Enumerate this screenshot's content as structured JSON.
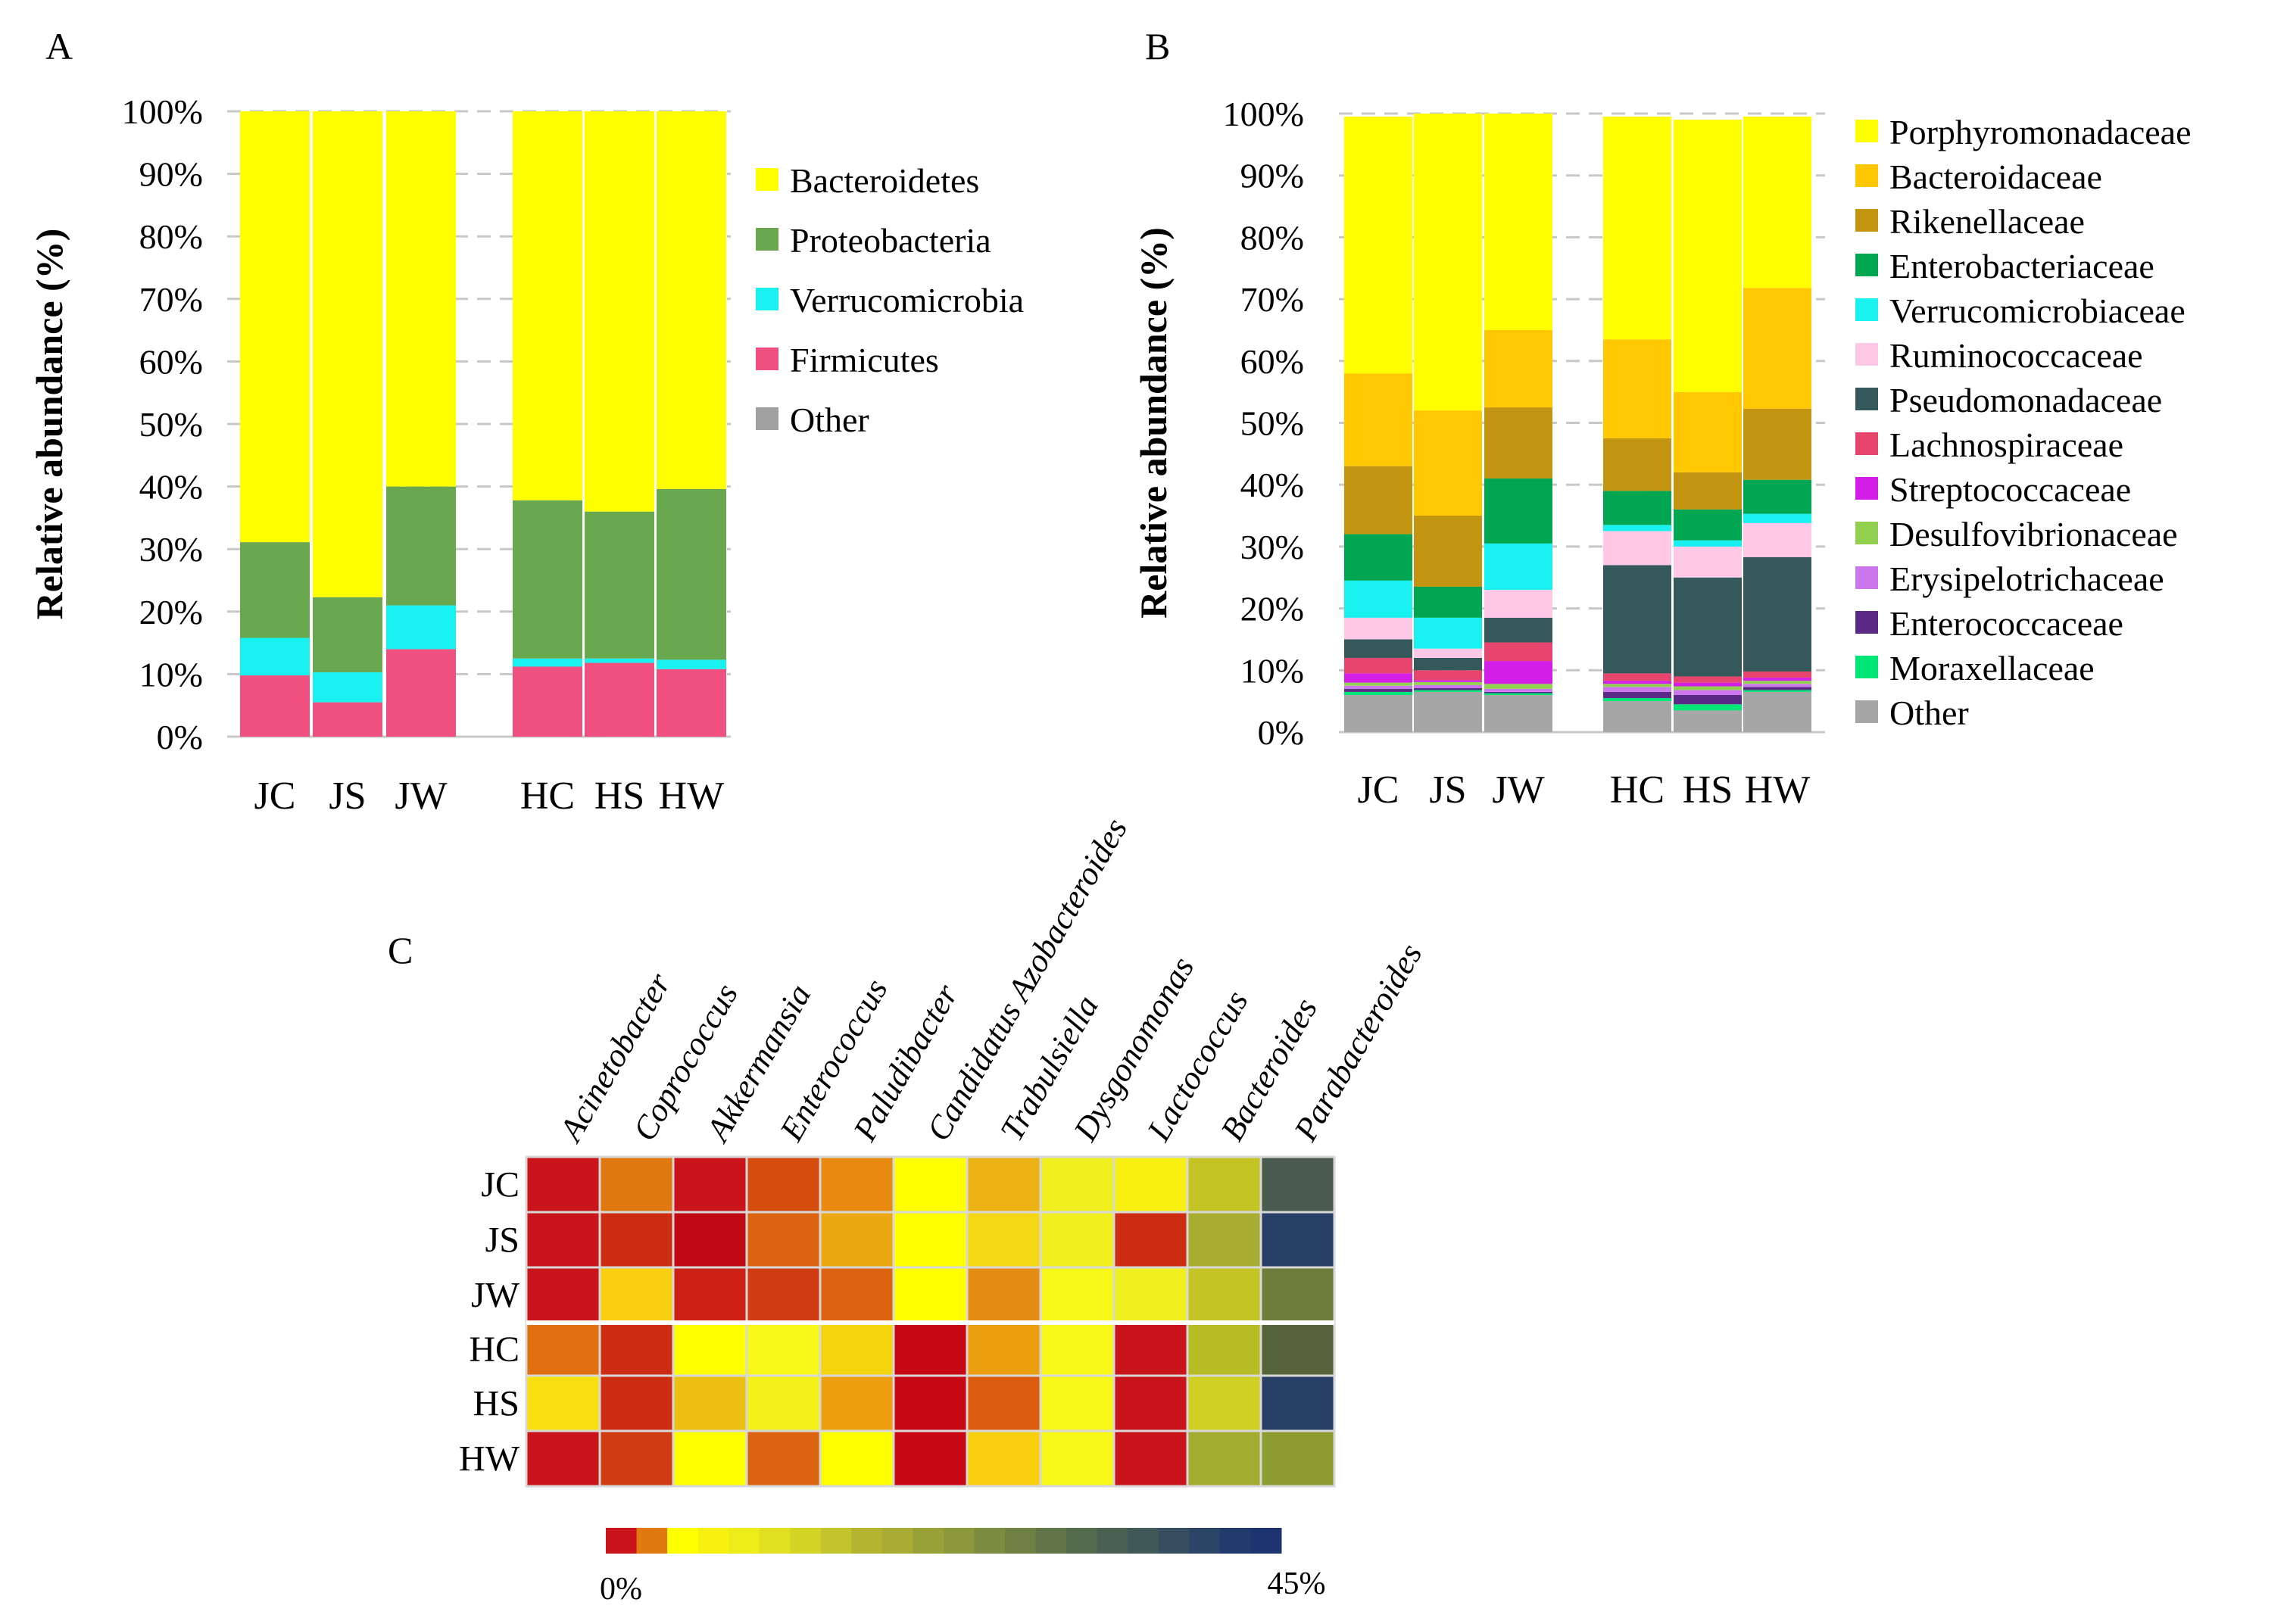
{
  "chart_data": [
    {
      "panel": "A",
      "type": "stacked-bar",
      "ylabel": "Relative abundance (%)",
      "ylim": [
        0,
        100
      ],
      "yticks": [
        "0%",
        "10%",
        "20%",
        "30%",
        "40%",
        "50%",
        "60%",
        "70%",
        "80%",
        "90%",
        "100%"
      ],
      "categories": [
        "JC",
        "JS",
        "JW",
        "HC",
        "HS",
        "HW"
      ],
      "legend_position": "right",
      "series": [
        {
          "name": "Other",
          "color": "#a0a0a0",
          "values": [
            0,
            0,
            0,
            0,
            0,
            0
          ]
        },
        {
          "name": "Firmicutes",
          "color": "#f0507f",
          "values": [
            9.8,
            5.5,
            14.0,
            11.2,
            11.8,
            10.8
          ]
        },
        {
          "name": "Verrucomicrobia",
          "color": "#19f0f0",
          "values": [
            6.0,
            4.8,
            7.0,
            1.3,
            0.7,
            1.5
          ]
        },
        {
          "name": "Proteobacteria",
          "color": "#6aa84f",
          "values": [
            15.3,
            12.0,
            19.0,
            25.3,
            23.5,
            27.3
          ]
        },
        {
          "name": "Bacteroidetes",
          "color": "#ffff00",
          "values": [
            68.9,
            77.7,
            60.0,
            62.2,
            64.0,
            60.4
          ]
        }
      ],
      "legend_order": [
        "Bacteroidetes",
        "Proteobacteria",
        "Verrucomicrobia",
        "Firmicutes",
        "Other"
      ]
    },
    {
      "panel": "B",
      "type": "stacked-bar",
      "ylabel": "Relative abundance (%)",
      "ylim": [
        0,
        100
      ],
      "yticks": [
        "0%",
        "10%",
        "20%",
        "30%",
        "40%",
        "50%",
        "60%",
        "70%",
        "80%",
        "90%",
        "100%"
      ],
      "categories": [
        "JC",
        "JS",
        "JW",
        "HC",
        "HS",
        "HW"
      ],
      "legend_position": "right",
      "series": [
        {
          "name": "Other",
          "color": "#a6a6a6",
          "values": [
            6.0,
            6.5,
            6.0,
            5.0,
            3.5,
            6.5
          ]
        },
        {
          "name": "Moraxellaceae",
          "color": "#00e676",
          "values": [
            0.5,
            0.3,
            0.3,
            0.5,
            1.0,
            0.3
          ]
        },
        {
          "name": "Enterococcaceae",
          "color": "#5b2a86",
          "values": [
            0.5,
            0.3,
            0.2,
            1.0,
            1.5,
            0.5
          ]
        },
        {
          "name": "Erysipelotrichaceae",
          "color": "#cc77ee",
          "values": [
            0.5,
            0.5,
            0.5,
            0.8,
            0.8,
            0.5
          ]
        },
        {
          "name": "Desulfovibrionaceae",
          "color": "#92d050",
          "values": [
            0.5,
            0.5,
            0.8,
            0.5,
            0.6,
            0.5
          ]
        },
        {
          "name": "Streptococcaceae",
          "color": "#d21ee6",
          "values": [
            1.5,
            0.3,
            3.7,
            0.5,
            0.6,
            0.5
          ]
        },
        {
          "name": "Lachnospiraceae",
          "color": "#e8456e",
          "values": [
            2.5,
            1.6,
            3.0,
            1.2,
            1.0,
            1.0
          ]
        },
        {
          "name": "Pseudomonadaceae",
          "color": "#35595a",
          "values": [
            3.0,
            2.0,
            4.0,
            17.5,
            16.0,
            18.5
          ]
        },
        {
          "name": "Ruminococcaceae",
          "color": "#ffc8e6",
          "values": [
            3.5,
            1.5,
            4.5,
            5.5,
            5.0,
            5.5
          ]
        },
        {
          "name": "Verrucomicrobiaceae",
          "color": "#19f0f0",
          "values": [
            6.0,
            5.0,
            7.5,
            1.0,
            1.0,
            1.5
          ]
        },
        {
          "name": "Enterobacteriaceae",
          "color": "#00a651",
          "values": [
            7.5,
            5.0,
            10.5,
            5.5,
            5.0,
            5.5
          ]
        },
        {
          "name": "Rikenellaceae",
          "color": "#c49510",
          "values": [
            11.0,
            11.5,
            11.5,
            8.5,
            6.0,
            11.5
          ]
        },
        {
          "name": "Bacteroidaceae",
          "color": "#ffc800",
          "values": [
            15.0,
            17.0,
            12.5,
            16.0,
            13.0,
            19.5
          ]
        },
        {
          "name": "Porphyromonadaceae",
          "color": "#ffff00",
          "values": [
            41.5,
            48.0,
            35.0,
            36.0,
            44.0,
            27.7
          ]
        }
      ],
      "legend_order": [
        "Porphyromonadaceae",
        "Bacteroidaceae",
        "Rikenellaceae",
        "Enterobacteriaceae",
        "Verrucomicrobiaceae",
        "Ruminococcaceae",
        "Pseudomonadaceae",
        "Lachnospiraceae",
        "Streptococcaceae",
        "Desulfovibrionaceae",
        "Erysipelotrichaceae",
        "Enterococcaceae",
        "Moraxellaceae",
        "Other"
      ]
    },
    {
      "panel": "C",
      "type": "heatmap",
      "columns": [
        "Acinetobacter",
        "Coprococcus",
        "Akkermansia",
        "Enterococcus",
        "Paludibacter",
        "Candidatus Azobacteroides",
        "Trabulsiella",
        "Dysgonomonas",
        "Lactococcus",
        "Bacteroides",
        "Parabacteroides"
      ],
      "rows": [
        "JC",
        "JS",
        "JW",
        "HC",
        "HS",
        "HW"
      ],
      "colors": [
        [
          "#c8141a",
          "#e07a10",
          "#c8141a",
          "#d44c0e",
          "#e88a10",
          "#ffff00",
          "#ecb214",
          "#f0f020",
          "#f8f010",
          "#c4c424",
          "#4a5a50"
        ],
        [
          "#c8141a",
          "#cc2c12",
          "#c00814",
          "#dc6410",
          "#eca810",
          "#ffff00",
          "#f4d814",
          "#f0f020",
          "#cc2c12",
          "#a8ac30",
          "#263e64"
        ],
        [
          "#c8141a",
          "#f8d010",
          "#cc2014",
          "#d03c12",
          "#dc6410",
          "#ffff00",
          "#e48c14",
          "#f8f818",
          "#f0f020",
          "#c4c424",
          "#6e7c3c"
        ],
        [
          "#e07010",
          "#cc2c12",
          "#ffff00",
          "#f8f818",
          "#f4d40c",
          "#c80814",
          "#eca010",
          "#f8f818",
          "#c8141a",
          "#b8bc24",
          "#56643c"
        ],
        [
          "#f8e010",
          "#cc2c12",
          "#ecc010",
          "#f4f018",
          "#eca010",
          "#c80814",
          "#dc5c10",
          "#f8f818",
          "#c8141a",
          "#d0d024",
          "#263e64"
        ],
        [
          "#c8141a",
          "#d03c12",
          "#ffff00",
          "#dc6410",
          "#ffff00",
          "#c80814",
          "#f8d010",
          "#f8f818",
          "#c8141a",
          "#a4ac30",
          "#8c9c30"
        ]
      ],
      "colorbar": {
        "min_label": "0%",
        "max_label": "45%",
        "range": [
          0,
          45
        ],
        "colors": [
          "#c8141a",
          "#e07a10",
          "#ffff00",
          "#f8f010",
          "#ecec18",
          "#e0e020",
          "#d4d424",
          "#c4c42c",
          "#b4b430",
          "#a8ac34",
          "#98a038",
          "#8c983c",
          "#7c8c40",
          "#6e8044",
          "#607448",
          "#546a4c",
          "#4a6050",
          "#405858",
          "#364e60",
          "#2c4466",
          "#233a6c",
          "#1e3470"
        ]
      }
    }
  ],
  "panels": {
    "a_label": "A",
    "b_label": "B",
    "c_label": "C"
  }
}
